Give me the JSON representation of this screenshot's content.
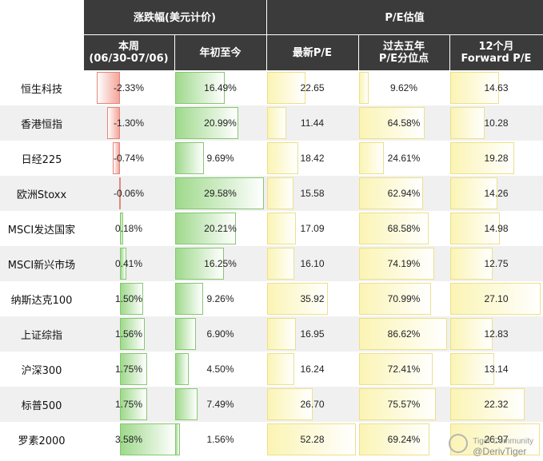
{
  "header": {
    "group_change": "涨跌幅(美元计价)",
    "group_pe": "P/E估值",
    "col_week": "本周\n(06/30-07/06)",
    "col_ytd": "年初至今",
    "col_pe": "最新P/E",
    "col_pct": "过去五年\nP/E分位点",
    "col_fwd": "12个月\nForward P/E"
  },
  "watermark": {
    "line1": "Tiger Community",
    "line2": "@DerivTiger"
  },
  "colors": {
    "header_bg": "#3b3b3b",
    "neg_bar": "#f4a59a",
    "pos_bar": "#9fd98c",
    "pe_bar": "#fbf4b4"
  },
  "chart_data": {
    "type": "table",
    "columns": [
      "本周(06/30-07/06)",
      "年初至今",
      "最新P/E",
      "过去五年P/E分位点",
      "12个月Forward P/E"
    ],
    "rows": [
      {
        "name": "恒生科技",
        "week": -2.33,
        "ytd": 16.49,
        "pe": 22.65,
        "pct": 9.62,
        "fwd": 14.63,
        "week_l": "-2.33%",
        "ytd_l": "16.49%",
        "pe_l": "22.65",
        "pct_l": "9.62%",
        "fwd_l": "14.63"
      },
      {
        "name": "香港恒指",
        "week": -1.3,
        "ytd": 20.99,
        "pe": 11.44,
        "pct": 64.58,
        "fwd": 10.28,
        "week_l": "-1.30%",
        "ytd_l": "20.99%",
        "pe_l": "11.44",
        "pct_l": "64.58%",
        "fwd_l": "10.28"
      },
      {
        "name": "日经225",
        "week": -0.74,
        "ytd": 9.69,
        "pe": 18.42,
        "pct": 24.61,
        "fwd": 19.28,
        "week_l": "-0.74%",
        "ytd_l": "9.69%",
        "pe_l": "18.42",
        "pct_l": "24.61%",
        "fwd_l": "19.28"
      },
      {
        "name": "欧洲Stoxx",
        "week": -0.06,
        "ytd": 29.58,
        "pe": 15.58,
        "pct": 62.94,
        "fwd": 14.26,
        "week_l": "-0.06%",
        "ytd_l": "29.58%",
        "pe_l": "15.58",
        "pct_l": "62.94%",
        "fwd_l": "14.26"
      },
      {
        "name": "MSCI发达国家",
        "week": 0.18,
        "ytd": 20.21,
        "pe": 17.09,
        "pct": 68.58,
        "fwd": 14.98,
        "week_l": "0.18%",
        "ytd_l": "20.21%",
        "pe_l": "17.09",
        "pct_l": "68.58%",
        "fwd_l": "14.98"
      },
      {
        "name": "MSCI新兴市场",
        "week": 0.41,
        "ytd": 16.25,
        "pe": 16.1,
        "pct": 74.19,
        "fwd": 12.75,
        "week_l": "0.41%",
        "ytd_l": "16.25%",
        "pe_l": "16.10",
        "pct_l": "74.19%",
        "fwd_l": "12.75"
      },
      {
        "name": "纳斯达克100",
        "week": 1.5,
        "ytd": 9.26,
        "pe": 35.92,
        "pct": 70.99,
        "fwd": 27.1,
        "week_l": "1.50%",
        "ytd_l": "9.26%",
        "pe_l": "35.92",
        "pct_l": "70.99%",
        "fwd_l": "27.10"
      },
      {
        "name": "上证综指",
        "week": 1.56,
        "ytd": 6.9,
        "pe": 16.95,
        "pct": 86.62,
        "fwd": 12.83,
        "week_l": "1.56%",
        "ytd_l": "6.90%",
        "pe_l": "16.95",
        "pct_l": "86.62%",
        "fwd_l": "12.83"
      },
      {
        "name": "沪深300",
        "week": 1.75,
        "ytd": 4.5,
        "pe": 16.24,
        "pct": 72.41,
        "fwd": 13.14,
        "week_l": "1.75%",
        "ytd_l": "4.50%",
        "pe_l": "16.24",
        "pct_l": "72.41%",
        "fwd_l": "13.14"
      },
      {
        "name": "标普500",
        "week": 1.75,
        "ytd": 7.49,
        "pe": 26.7,
        "pct": 75.57,
        "fwd": 22.32,
        "week_l": "1.75%",
        "ytd_l": "7.49%",
        "pe_l": "26.70",
        "pct_l": "75.57%",
        "fwd_l": "22.32"
      },
      {
        "name": "罗素2000",
        "week": 3.58,
        "ytd": 1.56,
        "pe": 52.28,
        "pct": 69.24,
        "fwd": 26.97,
        "week_l": "3.58%",
        "ytd_l": "1.56%",
        "pe_l": "52.28",
        "pct_l": "69.24%",
        "fwd_l": "26.97"
      }
    ]
  }
}
